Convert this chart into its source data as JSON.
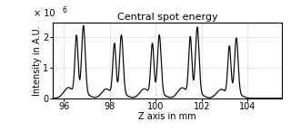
{
  "title": "Central spot energy",
  "xlabel": "Z axis in mm",
  "ylabel": "Intensity in A.U.",
  "xlim": [
    95.5,
    105.5
  ],
  "ylim": [
    0,
    2500000.0
  ],
  "yticks": [
    0,
    1000000.0,
    2000000.0
  ],
  "ytick_labels": [
    "0",
    "1",
    "2"
  ],
  "xticks": [
    96,
    98,
    100,
    102,
    104
  ],
  "exponent_label": "× 10",
  "exponent_power": "6",
  "peak_centers": [
    96.85,
    98.5,
    100.15,
    101.8,
    103.5
  ],
  "peak_heights": [
    2350000.0,
    2050000.0,
    2050000.0,
    2300000.0,
    1950000.0
  ],
  "line_color": "#000000",
  "bg_color": "#ffffff",
  "grid_color": "#999999"
}
